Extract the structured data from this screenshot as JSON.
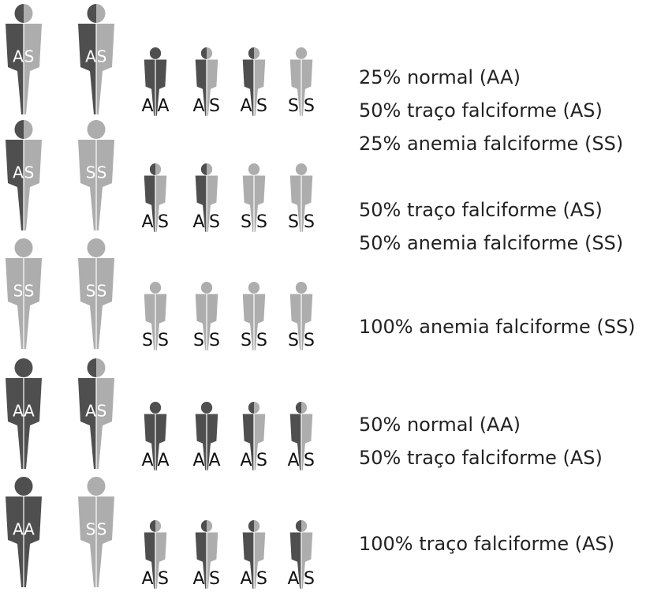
{
  "colors": {
    "A": "#4f4f4f",
    "S": "#adadad"
  },
  "rows": [
    {
      "parents": [
        [
          "A",
          "S"
        ],
        [
          "A",
          "S"
        ]
      ],
      "children": [
        [
          "A",
          "A"
        ],
        [
          "A",
          "S"
        ],
        [
          "A",
          "S"
        ],
        [
          "S",
          "S"
        ]
      ],
      "outcomes": [
        "25% normal (AA)",
        "50% traço falciforme (AS)",
        "25% anemia falciforme (SS)"
      ]
    },
    {
      "parents": [
        [
          "A",
          "S"
        ],
        [
          "S",
          "S"
        ]
      ],
      "children": [
        [
          "A",
          "S"
        ],
        [
          "A",
          "S"
        ],
        [
          "S",
          "S"
        ],
        [
          "S",
          "S"
        ]
      ],
      "outcomes": [
        "50% traço falciforme (AS)",
        "50% anemia falciforme (SS)"
      ]
    },
    {
      "parents": [
        [
          "S",
          "S"
        ],
        [
          "S",
          "S"
        ]
      ],
      "children": [
        [
          "S",
          "S"
        ],
        [
          "S",
          "S"
        ],
        [
          "S",
          "S"
        ],
        [
          "S",
          "S"
        ]
      ],
      "outcomes": [
        "100% anemia falciforme (SS)"
      ]
    },
    {
      "parents": [
        [
          "A",
          "A"
        ],
        [
          "A",
          "S"
        ]
      ],
      "children": [
        [
          "A",
          "A"
        ],
        [
          "A",
          "A"
        ],
        [
          "A",
          "S"
        ],
        [
          "A",
          "S"
        ]
      ],
      "outcomes": [
        "50% normal (AA)",
        "50% traço falciforme (AS)"
      ]
    },
    {
      "parents": [
        [
          "A",
          "A"
        ],
        [
          "S",
          "S"
        ]
      ],
      "children": [
        [
          "A",
          "S"
        ],
        [
          "A",
          "S"
        ],
        [
          "A",
          "S"
        ],
        [
          "A",
          "S"
        ]
      ],
      "outcomes": [
        "100% traço falciforme (AS)"
      ]
    }
  ]
}
